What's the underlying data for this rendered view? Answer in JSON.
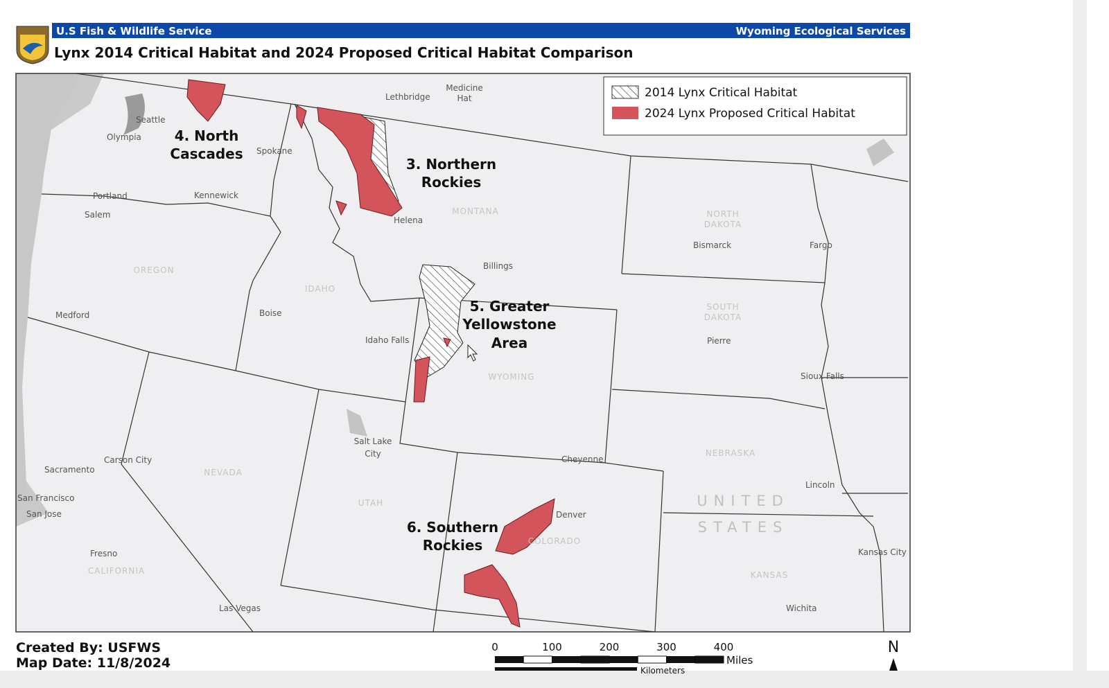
{
  "header": {
    "agency": "U.S Fish & Wildlife Service",
    "office": "Wyoming Ecological Services",
    "title": "Lynx 2014 Critical Habitat and 2024 Proposed Critical Habitat Comparison"
  },
  "legend": [
    "2014 Lynx Critical Habitat",
    "2024 Lynx Proposed Critical Habitat"
  ],
  "units": [
    {
      "lines": [
        "4. North",
        "Cascades"
      ]
    },
    {
      "lines": [
        "3. Northern",
        "Rockies"
      ]
    },
    {
      "lines": [
        "5. Greater",
        "Yellowstone",
        "Area"
      ]
    },
    {
      "lines": [
        "6. Southern",
        "Rockies"
      ]
    }
  ],
  "cities": [
    "Seattle",
    "Olympia",
    "Spokane",
    "Portland",
    "Kennewick",
    "Salem",
    "Lethbridge",
    "Medicine",
    "Hat",
    "Helena",
    "Billings",
    "Bismarck",
    "Fargo",
    "Medford",
    "Boise",
    "Idaho Falls",
    "Pierre",
    "Sioux Falls",
    "Salt Lake",
    "City",
    "Cheyenne",
    "Carson City",
    "Sacramento",
    "San Francisco",
    "San Jose",
    "Fresno",
    "Las Vegas",
    "Denver",
    "Lincoln",
    "Kansas City",
    "Wichita"
  ],
  "states": [
    "OREGON",
    "IDAHO",
    "MONTANA",
    "NORTH",
    "DAKOTA",
    "SOUTH",
    "DAKOTA",
    "WYOMING",
    "NEVADA",
    "UTAH",
    "COLORADO",
    "NEBRASKA",
    "KANSAS",
    "CALIFORNIA"
  ],
  "country": [
    "UNITED",
    "STATES"
  ],
  "footer": {
    "created": "Created By: USFWS",
    "date": "Map Date: 11/8/2024"
  },
  "scale_bar": {
    "ticks": [
      0,
      100,
      200,
      300,
      400
    ],
    "miles": "Miles",
    "kilometers": "Kilometers"
  },
  "north": "N"
}
